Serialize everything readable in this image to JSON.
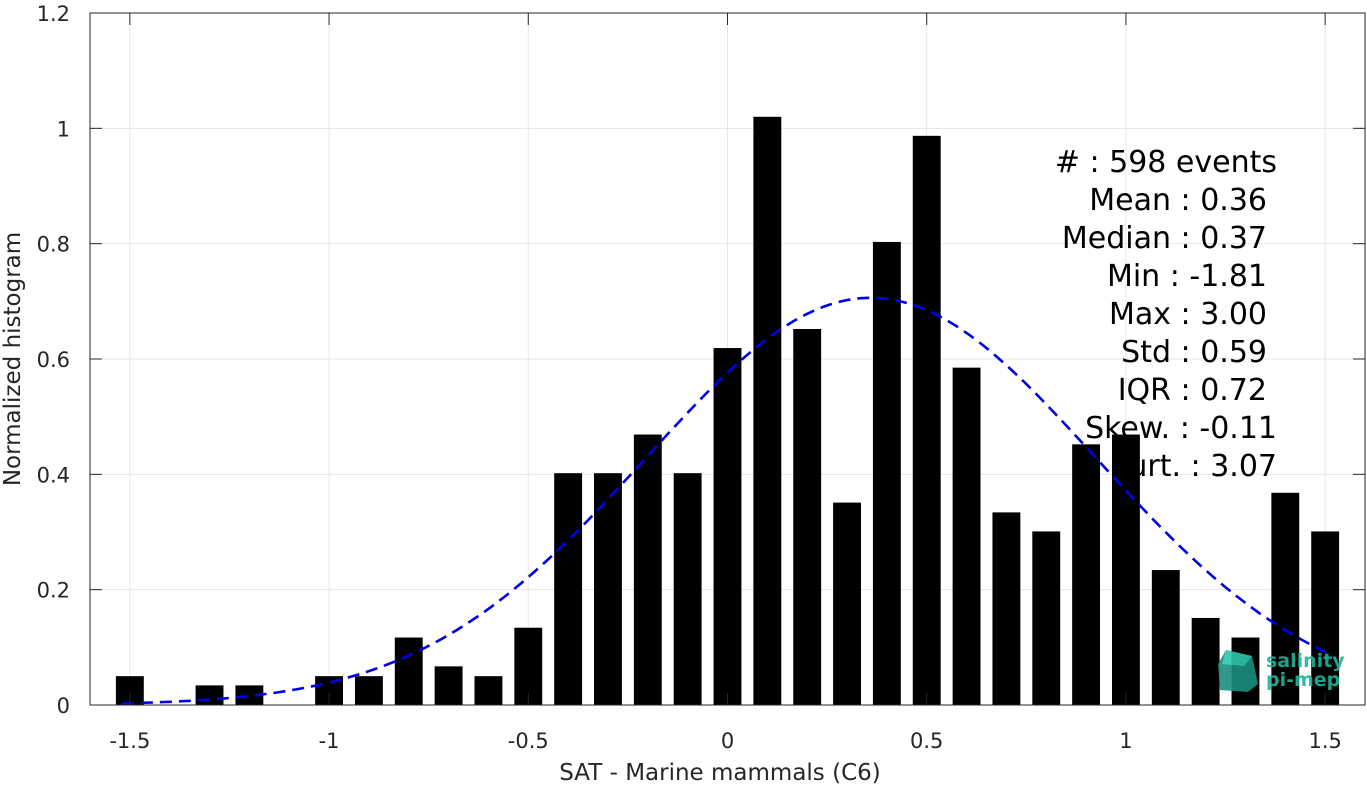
{
  "chart_data": {
    "type": "bar",
    "xlabel": "SAT - Marine mammals (C6)",
    "ylabel": "Normalized histogram",
    "xlim": [
      -1.6,
      1.6
    ],
    "ylim": [
      0,
      1.2
    ],
    "xticks": [
      -1.5,
      -1,
      -0.5,
      0,
      0.5,
      1,
      1.5
    ],
    "xtick_labels": [
      "-1.5",
      "-1",
      "-0.5",
      "0",
      "0.5",
      "1",
      "1.5"
    ],
    "yticks": [
      0,
      0.2,
      0.4,
      0.6,
      0.8,
      1,
      1.2
    ],
    "ytick_labels": [
      "0",
      "0.2",
      "0.4",
      "0.6",
      "0.8",
      "1",
      "1.2"
    ],
    "grid": true,
    "bar_color": "#000000",
    "bin_width": 0.1,
    "bars": [
      {
        "x": -1.5,
        "y": 0.05
      },
      {
        "x": -1.3,
        "y": 0.034
      },
      {
        "x": -1.2,
        "y": 0.034
      },
      {
        "x": -1.0,
        "y": 0.05
      },
      {
        "x": -0.9,
        "y": 0.05
      },
      {
        "x": -0.8,
        "y": 0.117
      },
      {
        "x": -0.7,
        "y": 0.067
      },
      {
        "x": -0.6,
        "y": 0.05
      },
      {
        "x": -0.5,
        "y": 0.134
      },
      {
        "x": -0.4,
        "y": 0.402
      },
      {
        "x": -0.3,
        "y": 0.402
      },
      {
        "x": -0.2,
        "y": 0.469
      },
      {
        "x": -0.1,
        "y": 0.402
      },
      {
        "x": 0.0,
        "y": 0.619
      },
      {
        "x": 0.1,
        "y": 1.02
      },
      {
        "x": 0.2,
        "y": 0.652
      },
      {
        "x": 0.3,
        "y": 0.351
      },
      {
        "x": 0.4,
        "y": 0.803
      },
      {
        "x": 0.5,
        "y": 0.987
      },
      {
        "x": 0.6,
        "y": 0.585
      },
      {
        "x": 0.7,
        "y": 0.334
      },
      {
        "x": 0.8,
        "y": 0.301
      },
      {
        "x": 0.9,
        "y": 0.452
      },
      {
        "x": 1.0,
        "y": 0.469
      },
      {
        "x": 1.1,
        "y": 0.234
      },
      {
        "x": 1.2,
        "y": 0.151
      },
      {
        "x": 1.3,
        "y": 0.117
      },
      {
        "x": 1.4,
        "y": 0.368
      },
      {
        "x": 1.5,
        "y": 0.301
      }
    ],
    "fit": {
      "type": "normal",
      "mean": 0.36,
      "std": 0.565,
      "x_range": [
        -1.52,
        1.52
      ],
      "color": "#0000e6",
      "style": "dashed"
    },
    "stats": {
      "events": "#  : 598 events",
      "mean": "Mean : 0.36",
      "median": "Median : 0.37",
      "min": "Min : -1.81",
      "max": "Max : 3.00",
      "std": "Std : 0.59",
      "iqr": "IQR : 0.72",
      "skew": "Skew. : -0.11",
      "kurt": "urt. : 3.07"
    },
    "logo": {
      "line1": "salinity",
      "line2": "pi-mep",
      "color": "#22b39a"
    }
  }
}
